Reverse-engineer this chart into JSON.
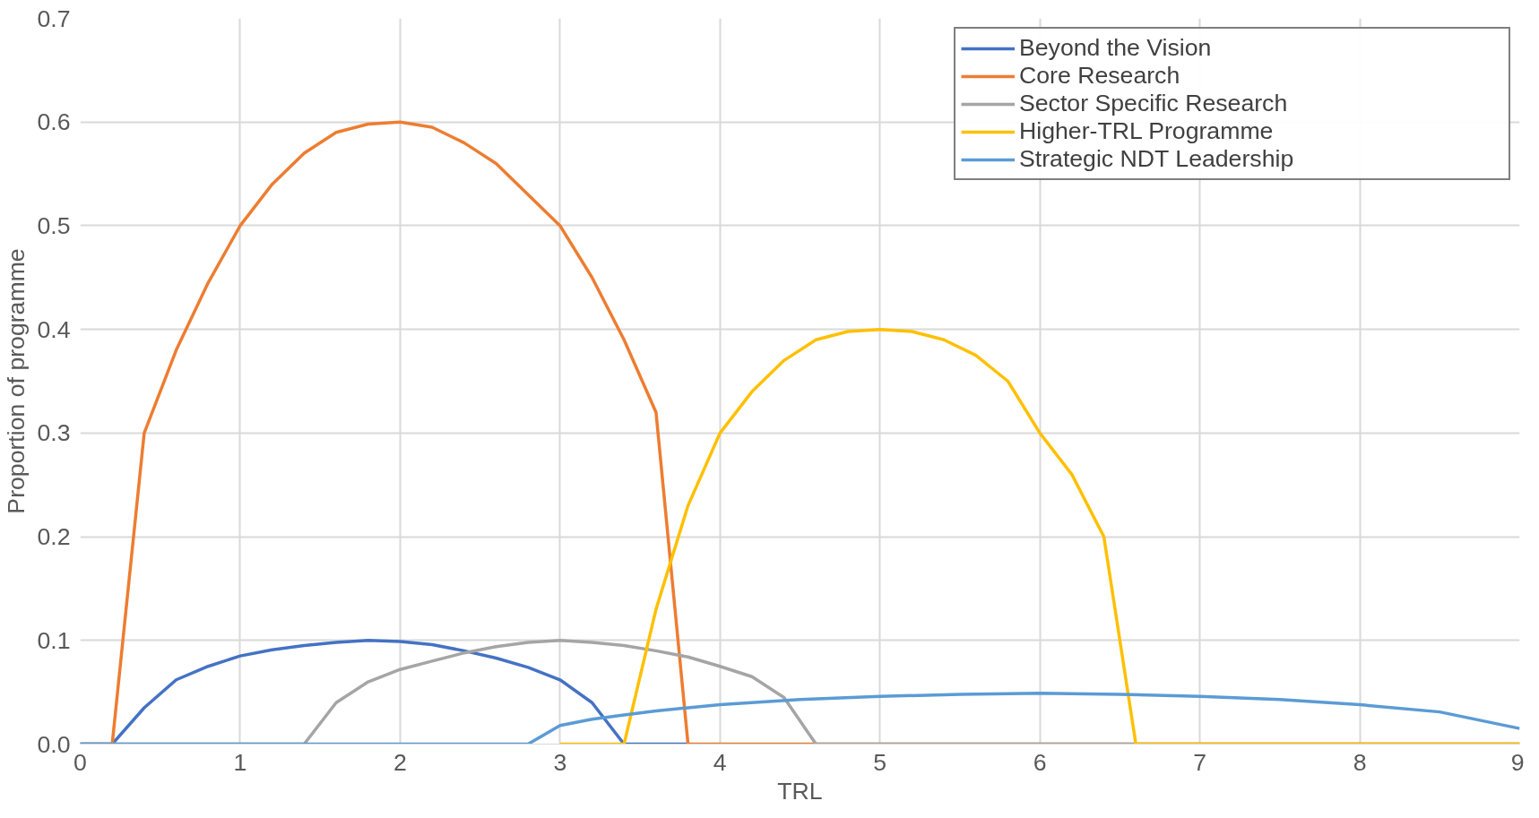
{
  "chart_data": {
    "type": "line",
    "xlabel": "TRL",
    "ylabel": "Proportion of programme",
    "xlim": [
      0,
      9
    ],
    "ylim": [
      0,
      0.7
    ],
    "xticks": [
      0,
      1,
      2,
      3,
      4,
      5,
      6,
      7,
      8,
      9
    ],
    "yticks": [
      {
        "value": 0,
        "label": "0.0"
      },
      0.1,
      0.2,
      0.3,
      0.4,
      0.5,
      0.6,
      0.7
    ],
    "grid": true,
    "legend": "top right",
    "line_style": "solid",
    "marker": "none",
    "series": [
      {
        "name": "Beyond the Vision",
        "color": "#4472c4",
        "x": [
          0,
          0.2,
          0.4,
          0.6,
          0.8,
          1,
          1.2,
          1.4,
          1.6,
          1.8,
          2,
          2.2,
          2.4,
          2.6,
          2.8,
          3,
          3.2,
          3.4,
          3.6,
          3.8
        ],
        "values": [
          0,
          0,
          0.035,
          0.062,
          0.075,
          0.085,
          0.091,
          0.095,
          0.098,
          0.1,
          0.099,
          0.096,
          0.09,
          0.083,
          0.074,
          0.062,
          0.04,
          0,
          0,
          0
        ]
      },
      {
        "name": "Core Research",
        "color": "#ed7d31",
        "x": [
          0,
          0.2,
          0.4,
          0.6,
          0.8,
          1,
          1.2,
          1.4,
          1.6,
          1.8,
          2,
          2.2,
          2.4,
          2.6,
          2.8,
          3,
          3.2,
          3.4,
          3.6,
          3.8,
          4,
          5,
          6,
          7,
          8,
          9
        ],
        "values": [
          0,
          0,
          0.3,
          0.38,
          0.445,
          0.5,
          0.54,
          0.57,
          0.59,
          0.598,
          0.6,
          0.595,
          0.58,
          0.56,
          0.53,
          0.5,
          0.45,
          0.39,
          0.32,
          0,
          0,
          0,
          0,
          0,
          0,
          0
        ]
      },
      {
        "name": "Sector Specific Research",
        "color": "#a5a5a5",
        "x": [
          0,
          1,
          1.4,
          1.6,
          1.8,
          2,
          2.2,
          2.4,
          2.6,
          2.8,
          3,
          3.2,
          3.4,
          3.6,
          3.8,
          4,
          4.2,
          4.4,
          4.6,
          5,
          6,
          7,
          8,
          9
        ],
        "values": [
          0,
          0,
          0,
          0.04,
          0.06,
          0.072,
          0.08,
          0.088,
          0.094,
          0.098,
          0.1,
          0.098,
          0.095,
          0.09,
          0.084,
          0.075,
          0.065,
          0.045,
          0,
          0,
          0,
          0,
          0,
          0
        ]
      },
      {
        "name": "Higher-TRL Programme",
        "color": "#ffc000",
        "x": [
          3,
          3.4,
          3.6,
          3.8,
          4,
          4.2,
          4.4,
          4.6,
          4.8,
          5,
          5.2,
          5.4,
          5.6,
          5.8,
          6,
          6.2,
          6.4,
          6.6,
          7,
          8,
          9
        ],
        "values": [
          0,
          0,
          0.13,
          0.23,
          0.3,
          0.34,
          0.37,
          0.39,
          0.398,
          0.4,
          0.398,
          0.39,
          0.375,
          0.35,
          0.3,
          0.26,
          0.2,
          0,
          0,
          0,
          0
        ]
      },
      {
        "name": "Strategic NDT Leadership",
        "color": "#5b9bd5",
        "x": [
          0,
          1,
          2,
          2.8,
          3,
          3.2,
          3.4,
          3.6,
          3.8,
          4,
          4.5,
          5,
          5.5,
          6,
          6.5,
          7,
          7.5,
          8,
          8.5,
          9
        ],
        "values": [
          0,
          0,
          0,
          0,
          0.018,
          0.024,
          0.028,
          0.032,
          0.035,
          0.038,
          0.043,
          0.046,
          0.048,
          0.049,
          0.048,
          0.046,
          0.043,
          0.038,
          0.031,
          0.015
        ]
      }
    ]
  }
}
